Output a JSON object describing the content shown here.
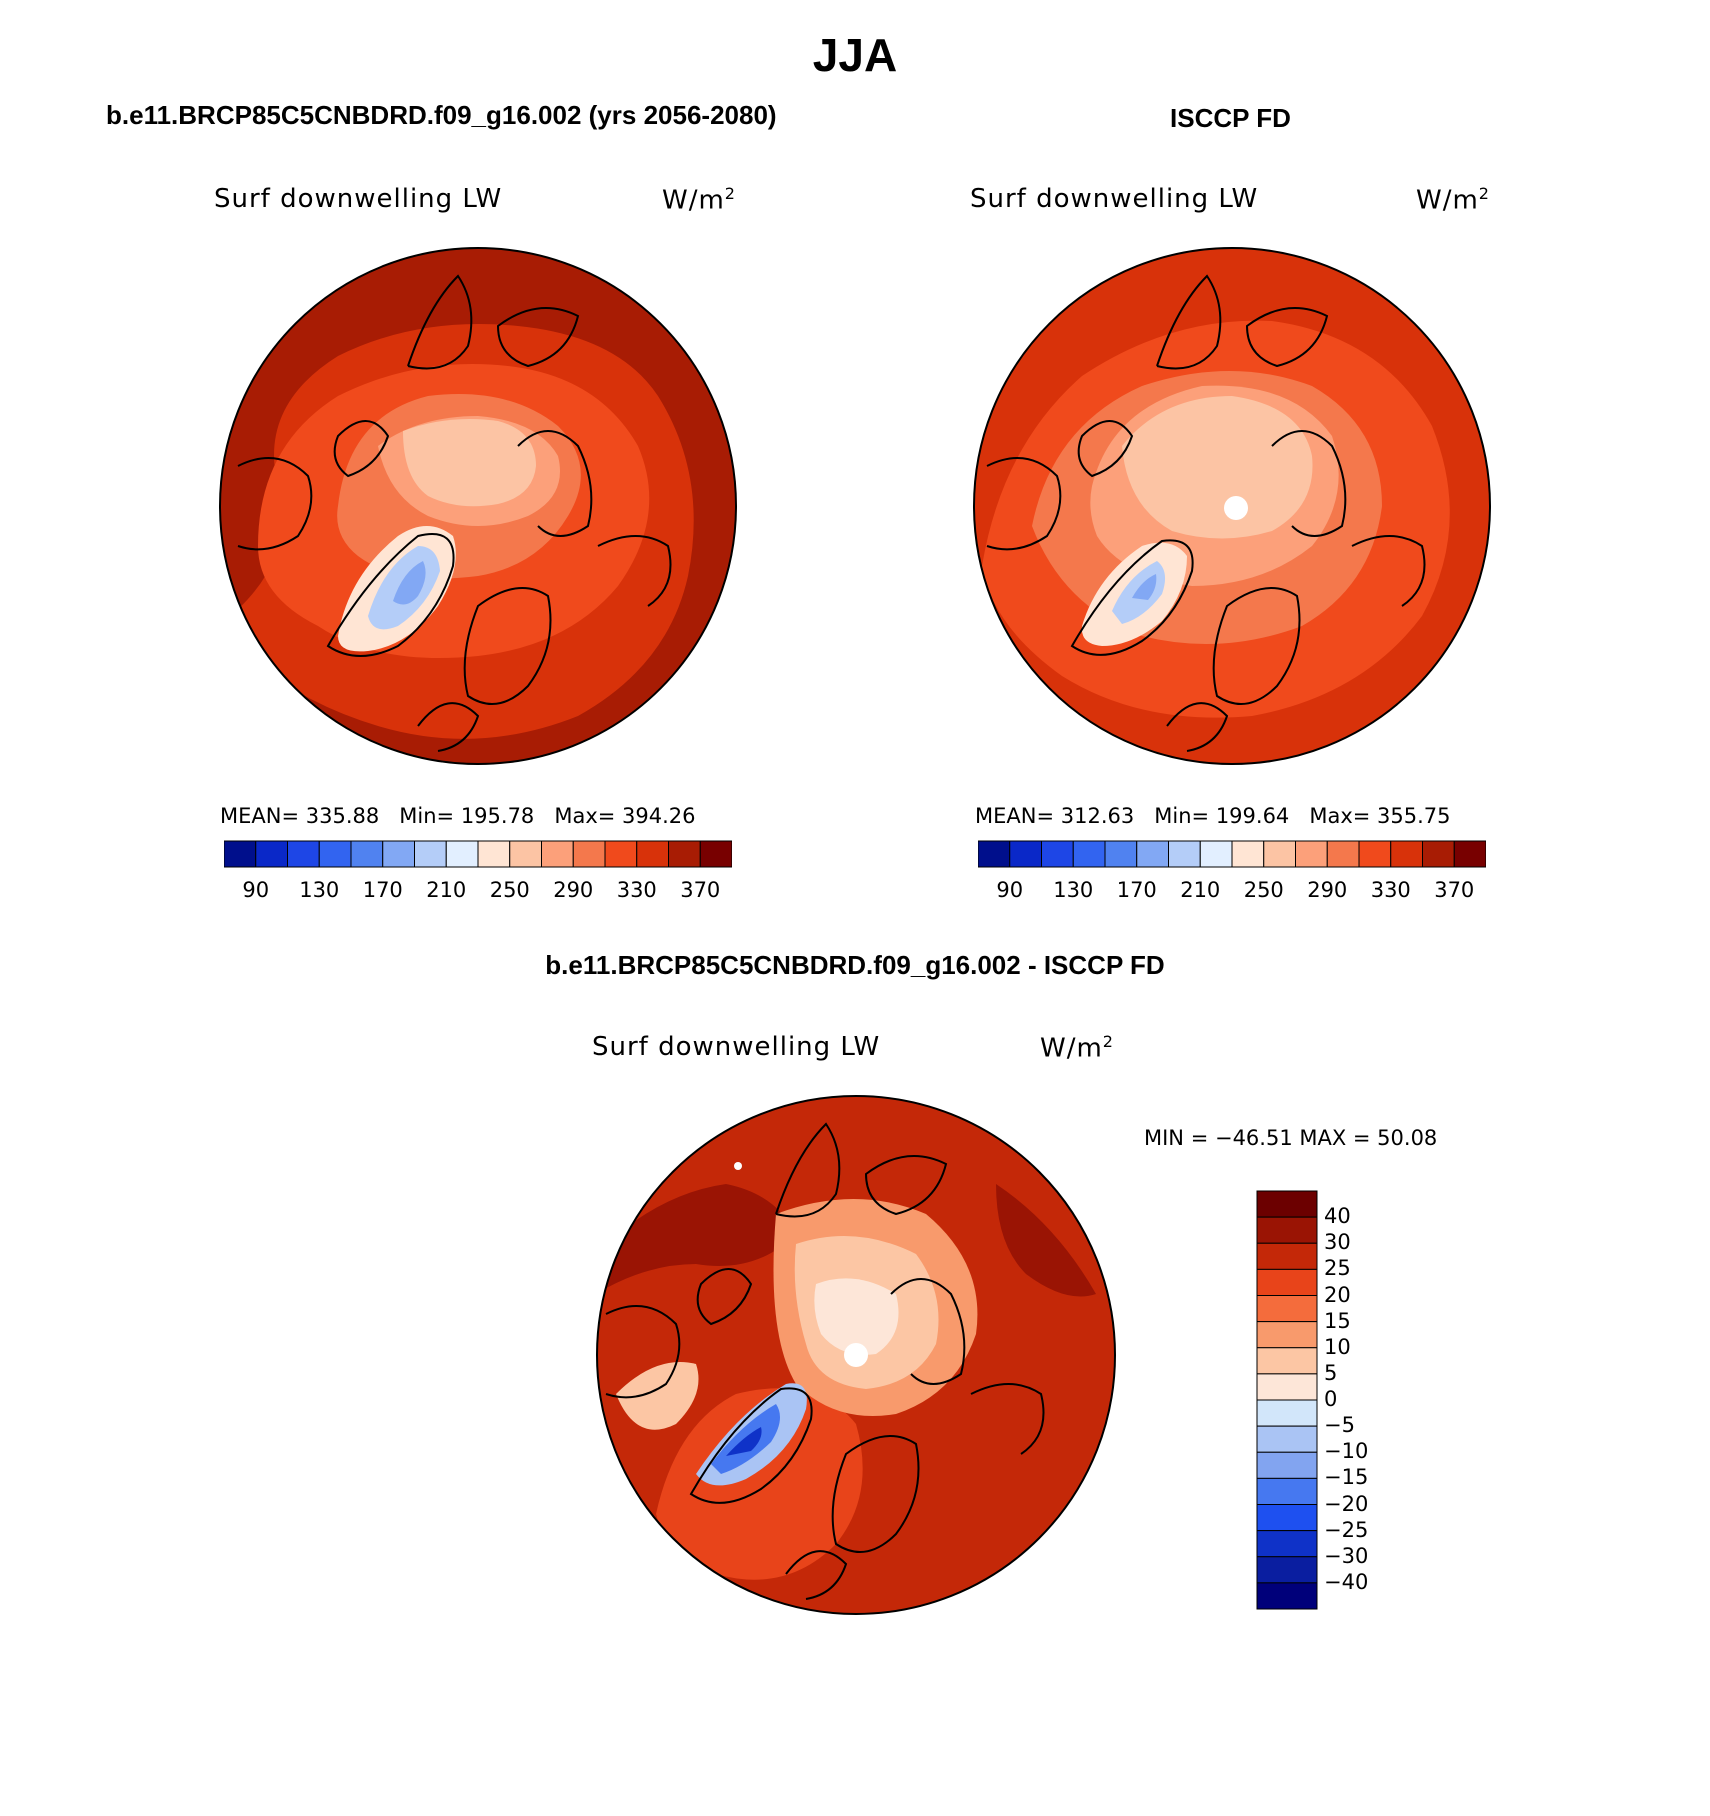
{
  "header": {
    "title": "JJA"
  },
  "colors": {
    "abs_scale": [
      "#000f8c",
      "#0a28c8",
      "#1e46e6",
      "#3264f0",
      "#5082f0",
      "#82a8f4",
      "#b4cdf8",
      "#e2efff",
      "#ffe5d4",
      "#fcc4a4",
      "#fca07a",
      "#f4784c",
      "#f04a1c",
      "#d8320a",
      "#a81c04",
      "#780000"
    ],
    "diff_scale": [
      "#00007a",
      "#0a1ea0",
      "#0f32c8",
      "#1e50f0",
      "#4678f0",
      "#82a4f0",
      "#aac4f4",
      "#d2e6fa",
      "#fde6d8",
      "#fcc6a4",
      "#f89a6c",
      "#f46c3c",
      "#e8441a",
      "#c42808",
      "#9a1404",
      "#6c0000"
    ],
    "outline": "#000000"
  },
  "chart_data": [
    {
      "type": "heatmap",
      "projection": "north-polar-stereographic",
      "panel_title": "b.e11.BRCP85C5CNBDRD.f09_g16.002 (yrs 2056-2080)",
      "variable": "Surf downwelling LW",
      "units": "W/m",
      "units_superscript": "2",
      "mean_label": "MEAN=",
      "mean": "335.88",
      "min_label": "Min=",
      "min": "195.78",
      "max_label": "Max=",
      "max": "394.26",
      "colorbar": {
        "orientation": "horizontal",
        "ticks": [
          "90",
          "130",
          "170",
          "210",
          "250",
          "290",
          "330",
          "370"
        ]
      }
    },
    {
      "type": "heatmap",
      "projection": "north-polar-stereographic",
      "panel_title": "ISCCP FD",
      "variable": "Surf downwelling LW",
      "units": "W/m",
      "units_superscript": "2",
      "mean_label": "MEAN=",
      "mean": "312.63",
      "min_label": "Min=",
      "min": "199.64",
      "max_label": "Max=",
      "max": "355.75",
      "colorbar": {
        "orientation": "horizontal",
        "ticks": [
          "90",
          "130",
          "170",
          "210",
          "250",
          "290",
          "330",
          "370"
        ]
      }
    },
    {
      "type": "heatmap",
      "projection": "north-polar-stereographic",
      "panel_title": "b.e11.BRCP85C5CNBDRD.f09_g16.002 - ISCCP FD",
      "variable": "Surf downwelling LW",
      "units": "W/m",
      "units_superscript": "2",
      "minmax_text": "MIN = −46.51 MAX =  50.08",
      "colorbar": {
        "orientation": "vertical",
        "ticks": [
          "40",
          "30",
          "25",
          "20",
          "15",
          "10",
          "5",
          "0",
          "−5",
          "−10",
          "−15",
          "−20",
          "−25",
          "−30",
          "−40"
        ]
      }
    }
  ]
}
